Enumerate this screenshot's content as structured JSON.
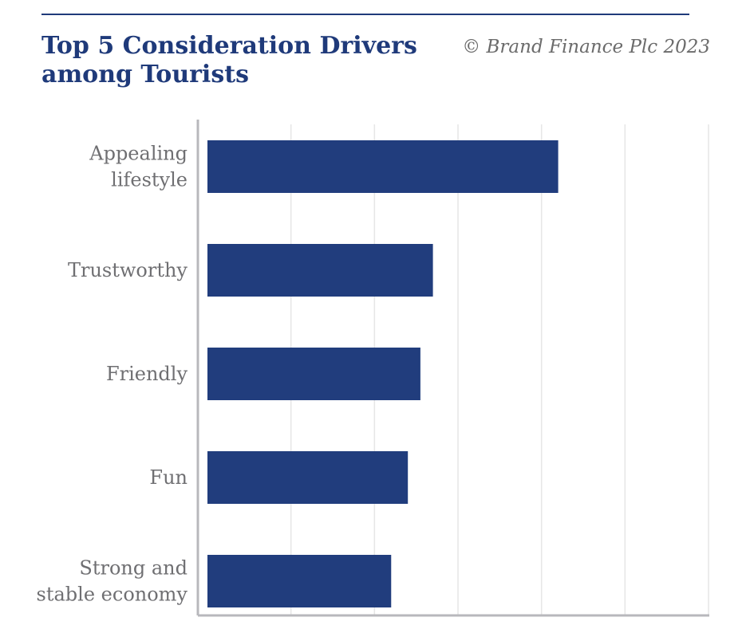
{
  "header": {
    "title": "Top 5 Consideration Drivers\namong Tourists",
    "credit": "© Brand Finance Plc 2023"
  },
  "colors": {
    "bar": "#213d7d",
    "title": "#1f3a7a",
    "grid": "#e6e6e6",
    "axis": "#b8b8bc",
    "label": "#6f6f72",
    "credit": "#6b6b6b"
  },
  "chart_data": {
    "type": "bar",
    "orientation": "horizontal",
    "title": "Top 5 Consideration Drivers among Tourists",
    "categories": [
      [
        "Appealing",
        "lifestyle"
      ],
      [
        "Trustworthy"
      ],
      [
        "Friendly"
      ],
      [
        "Fun"
      ],
      [
        "Strong and",
        "stable economy"
      ]
    ],
    "values": [
      4.2,
      2.7,
      2.55,
      2.4,
      2.2
    ],
    "xlim": [
      0,
      6
    ],
    "x_gridlines": [
      1,
      2,
      3,
      4,
      5,
      6
    ],
    "tick_labels_shown": false,
    "grid": true,
    "legend": "none"
  }
}
